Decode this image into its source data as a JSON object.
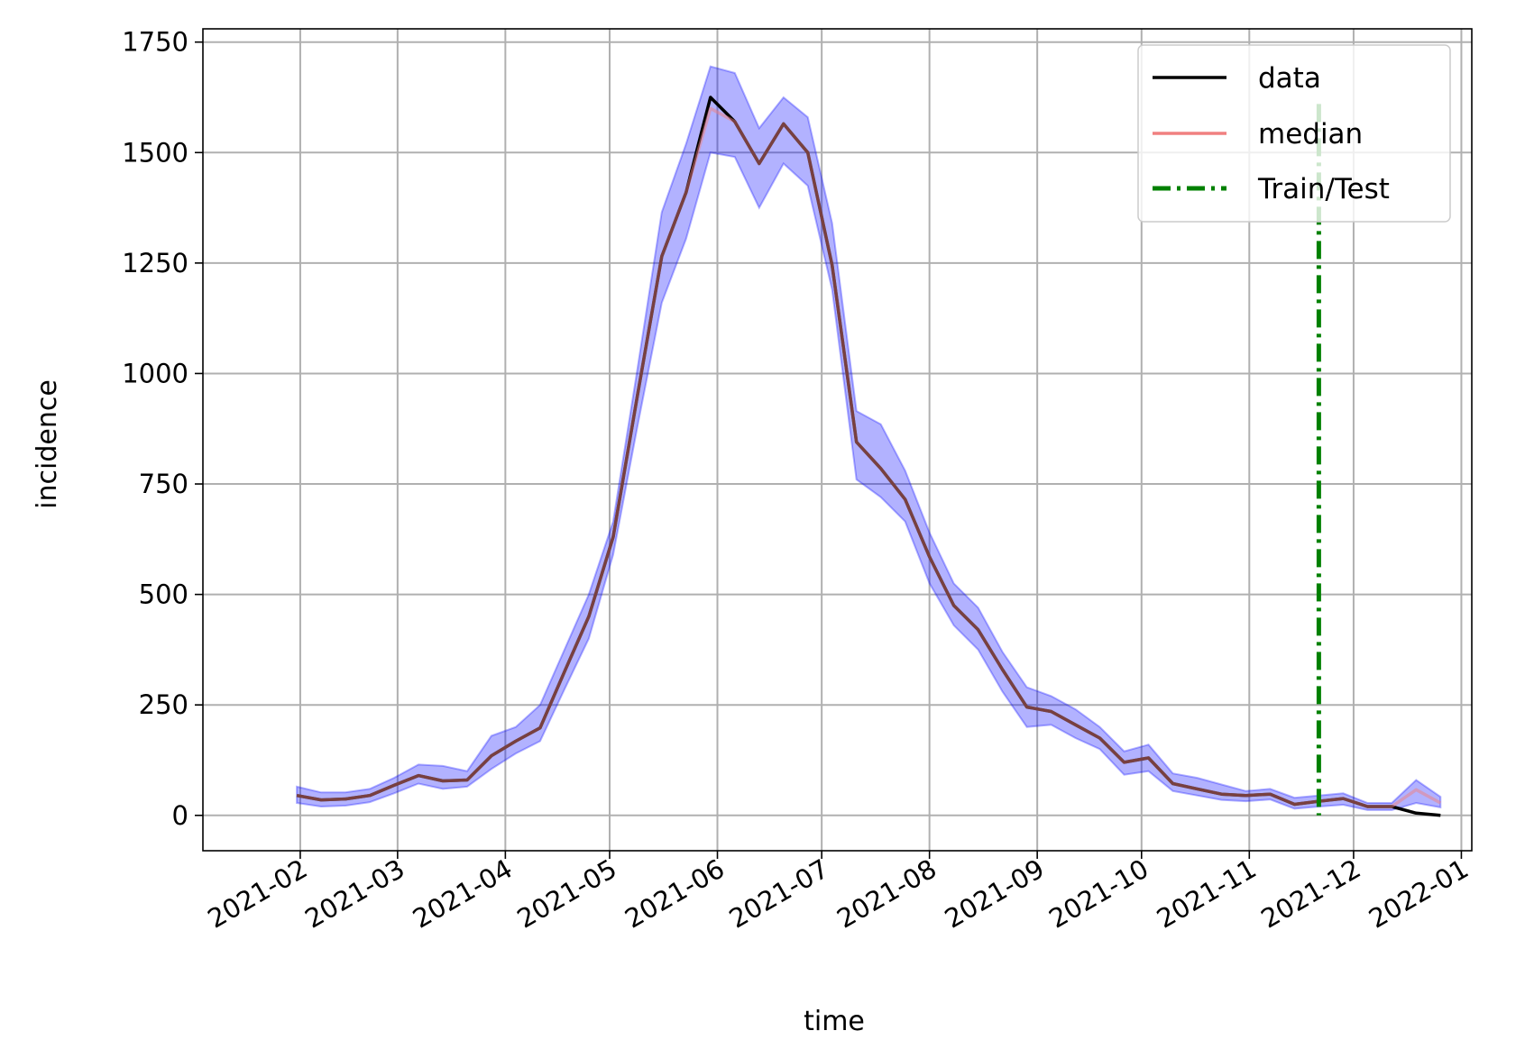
{
  "chart_data": {
    "type": "line",
    "title": "",
    "xlabel": "time",
    "ylabel": "incidence",
    "x_axis_type": "date",
    "xlim": [
      "2021-01-04",
      "2022-01-04"
    ],
    "ylim": [
      -80,
      1780
    ],
    "grid": true,
    "legend_position": "top-right",
    "x_ticks": [
      "2021-02",
      "2021-03",
      "2021-04",
      "2021-05",
      "2021-06",
      "2021-07",
      "2021-08",
      "2021-09",
      "2021-10",
      "2021-11",
      "2021-12",
      "2022-01"
    ],
    "x_tick_dates": [
      "2021-02-01",
      "2021-03-01",
      "2021-04-01",
      "2021-05-01",
      "2021-06-01",
      "2021-07-01",
      "2021-08-01",
      "2021-09-01",
      "2021-10-01",
      "2021-11-01",
      "2021-12-01",
      "2022-01-01"
    ],
    "y_ticks": [
      0,
      250,
      500,
      750,
      1000,
      1250,
      1500,
      1750
    ],
    "train_test_split": "2021-11-21",
    "x": [
      "2021-01-31",
      "2021-02-07",
      "2021-02-14",
      "2021-02-21",
      "2021-02-28",
      "2021-03-07",
      "2021-03-14",
      "2021-03-21",
      "2021-03-28",
      "2021-04-04",
      "2021-04-11",
      "2021-04-18",
      "2021-04-25",
      "2021-05-02",
      "2021-05-09",
      "2021-05-16",
      "2021-05-23",
      "2021-05-30",
      "2021-06-06",
      "2021-06-13",
      "2021-06-20",
      "2021-06-27",
      "2021-07-04",
      "2021-07-11",
      "2021-07-18",
      "2021-07-25",
      "2021-08-01",
      "2021-08-08",
      "2021-08-15",
      "2021-08-22",
      "2021-08-29",
      "2021-09-05",
      "2021-09-12",
      "2021-09-19",
      "2021-09-26",
      "2021-10-03",
      "2021-10-10",
      "2021-10-17",
      "2021-10-24",
      "2021-10-31",
      "2021-11-07",
      "2021-11-14",
      "2021-11-21",
      "2021-11-28",
      "2021-12-05",
      "2021-12-12",
      "2021-12-19",
      "2021-12-26"
    ],
    "series": [
      {
        "name": "data",
        "color": "#000000",
        "values": [
          45,
          35,
          37,
          45,
          68,
          90,
          78,
          80,
          135,
          168,
          198,
          325,
          450,
          630,
          950,
          1265,
          1410,
          1625,
          1570,
          1475,
          1565,
          1500,
          1245,
          845,
          785,
          715,
          585,
          475,
          420,
          330,
          245,
          235,
          205,
          175,
          120,
          130,
          72,
          60,
          48,
          45,
          48,
          25,
          32,
          38,
          20,
          20,
          5,
          0
        ]
      },
      {
        "name": "median",
        "color": "#f08080",
        "values": [
          45,
          35,
          37,
          45,
          68,
          90,
          78,
          80,
          135,
          168,
          198,
          325,
          450,
          630,
          950,
          1265,
          1410,
          1600,
          1570,
          1475,
          1565,
          1500,
          1245,
          845,
          785,
          715,
          585,
          475,
          420,
          330,
          245,
          235,
          205,
          175,
          120,
          130,
          72,
          60,
          48,
          45,
          48,
          25,
          32,
          38,
          20,
          20,
          58,
          28
        ]
      },
      {
        "name": "Train/Test",
        "color": "#008000"
      }
    ],
    "band": {
      "color": "#0000ff",
      "upper": [
        65,
        52,
        52,
        60,
        85,
        115,
        112,
        100,
        180,
        200,
        250,
        375,
        500,
        665,
        1010,
        1365,
        1520,
        1695,
        1680,
        1555,
        1625,
        1580,
        1340,
        915,
        885,
        780,
        640,
        525,
        470,
        370,
        290,
        270,
        240,
        200,
        145,
        160,
        95,
        85,
        70,
        55,
        60,
        40,
        45,
        50,
        28,
        28,
        80,
        42
      ],
      "lower": [
        28,
        20,
        22,
        30,
        50,
        72,
        60,
        65,
        105,
        140,
        168,
        285,
        400,
        590,
        880,
        1160,
        1305,
        1500,
        1490,
        1375,
        1475,
        1425,
        1190,
        760,
        720,
        665,
        525,
        430,
        375,
        280,
        200,
        205,
        175,
        150,
        92,
        100,
        55,
        45,
        35,
        32,
        36,
        15,
        20,
        24,
        12,
        12,
        28,
        18
      ]
    }
  }
}
